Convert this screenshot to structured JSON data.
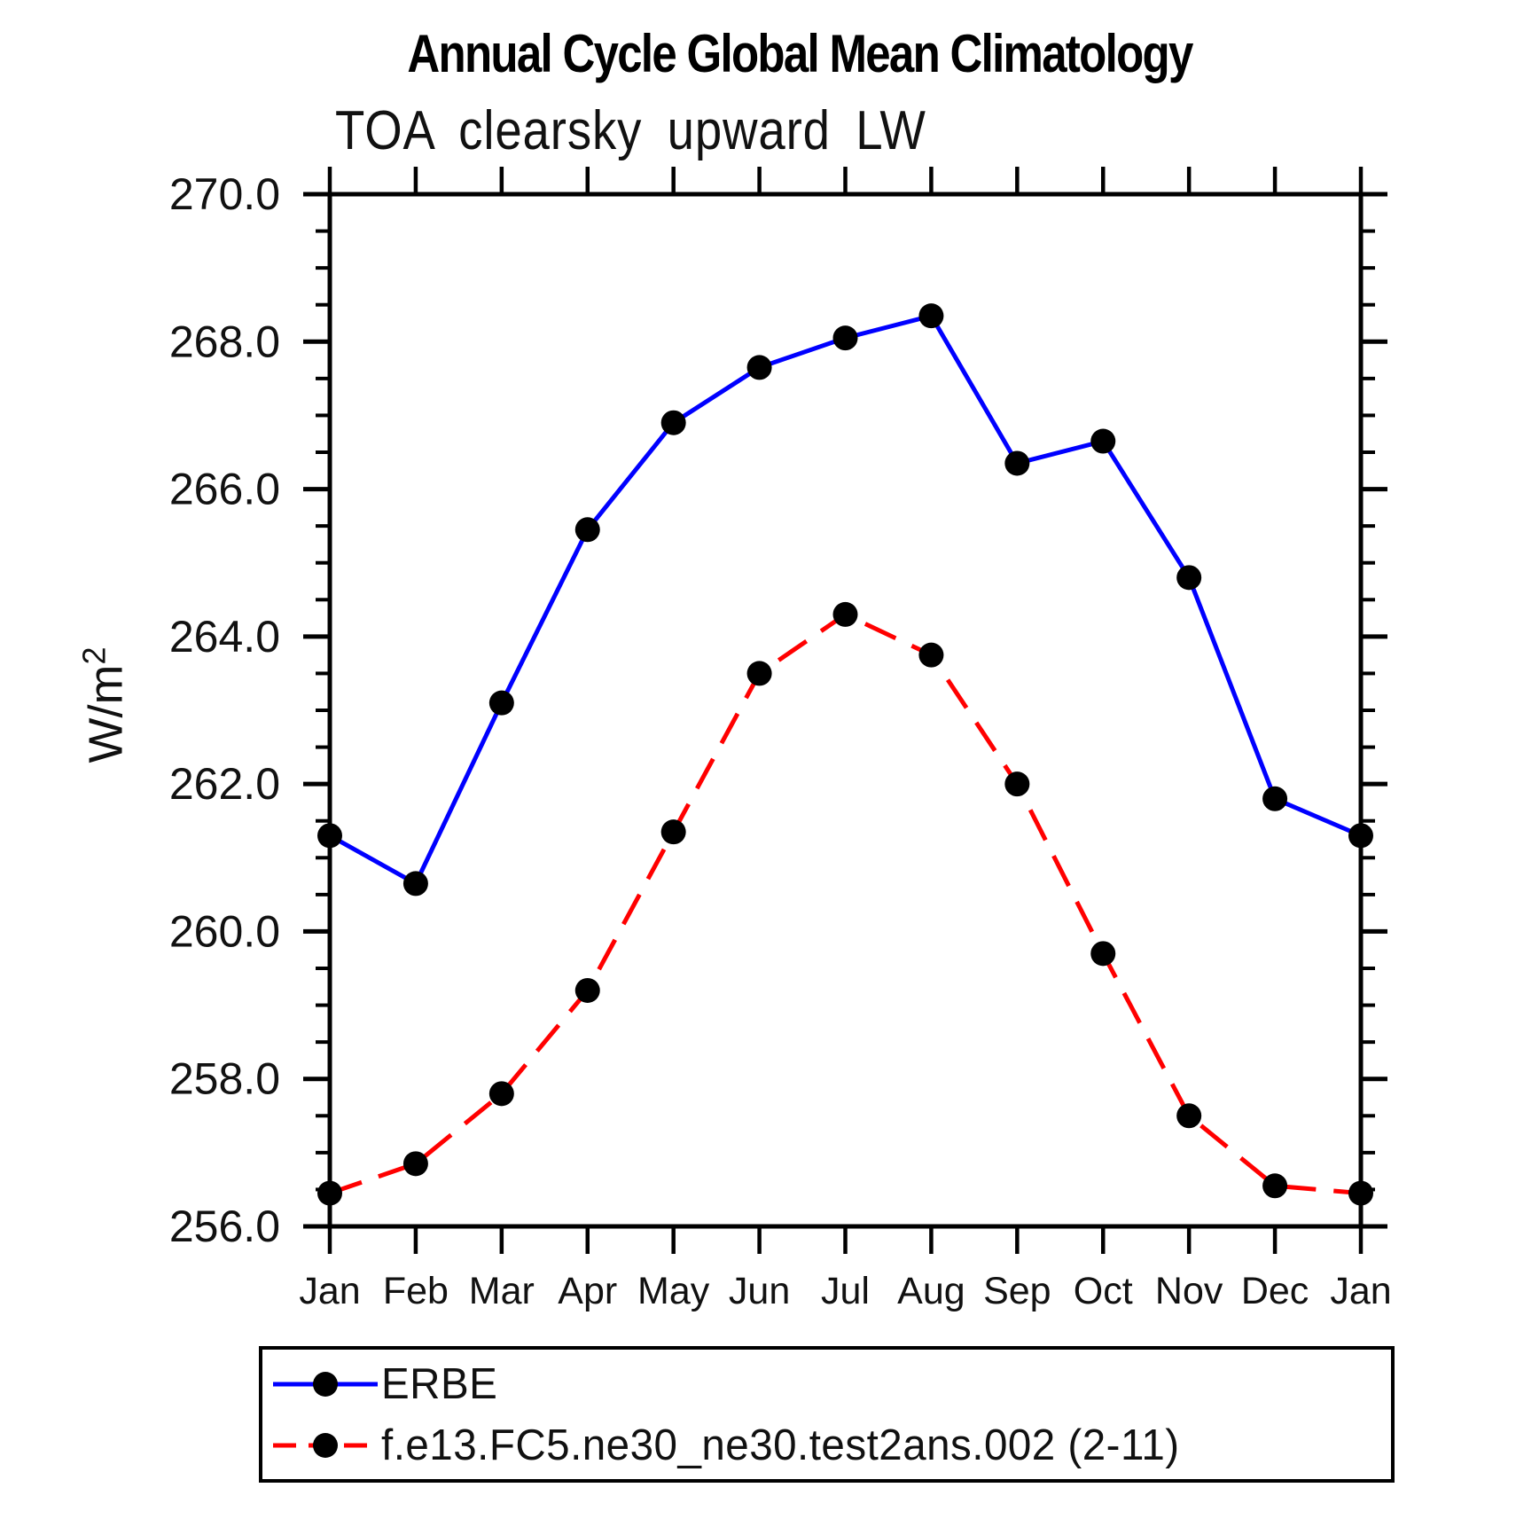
{
  "header": {
    "title": "Annual Cycle Global Mean Climatology",
    "subtitle": "TOA clearsky upward LW"
  },
  "axes": {
    "ylabel_base": "W/m",
    "ylabel_exponent": "2",
    "ytick_labels": [
      "256.0",
      "258.0",
      "260.0",
      "262.0",
      "264.0",
      "266.0",
      "268.0",
      "270.0"
    ],
    "xtick_labels": [
      "Jan",
      "Feb",
      "Mar",
      "Apr",
      "May",
      "Jun",
      "Jul",
      "Aug",
      "Sep",
      "Oct",
      "Nov",
      "Dec",
      "Jan"
    ]
  },
  "legend": {
    "entries": [
      {
        "label": "ERBE",
        "color": "#0000FF",
        "style": "solid",
        "marker": "black-dot"
      },
      {
        "label": "f.e13.FC5.ne30_ne30.test2ans.002 (2-11)",
        "color": "#FF0000",
        "style": "dashed",
        "marker": "black-dot"
      }
    ]
  },
  "chart_data": {
    "type": "line",
    "title": "Annual Cycle Global Mean Climatology",
    "subtitle": "TOA clearsky upward LW",
    "xlabel": "",
    "ylabel": "W/m^2",
    "categories": [
      "Jan",
      "Feb",
      "Mar",
      "Apr",
      "May",
      "Jun",
      "Jul",
      "Aug",
      "Sep",
      "Oct",
      "Nov",
      "Dec",
      "Jan"
    ],
    "ylim": [
      256.0,
      270.0
    ],
    "ytick_step": 2.0,
    "yminor_step": 0.5,
    "grid": false,
    "legend_position": "bottom-left-box",
    "marker_color": "#000000",
    "series": [
      {
        "name": "ERBE",
        "color": "#0000FF",
        "line_style": "solid",
        "marker": "filled-circle",
        "values": [
          261.3,
          260.65,
          263.1,
          265.45,
          266.9,
          267.65,
          268.05,
          268.35,
          266.35,
          266.65,
          264.8,
          261.8,
          261.3
        ]
      },
      {
        "name": "f.e13.FC5.ne30_ne30.test2ans.002 (2-11)",
        "color": "#FF0000",
        "line_style": "dashed",
        "marker": "filled-circle",
        "values": [
          256.45,
          256.85,
          257.8,
          259.2,
          261.35,
          263.5,
          264.3,
          263.75,
          262.0,
          259.7,
          257.5,
          256.55,
          256.45
        ]
      }
    ]
  }
}
